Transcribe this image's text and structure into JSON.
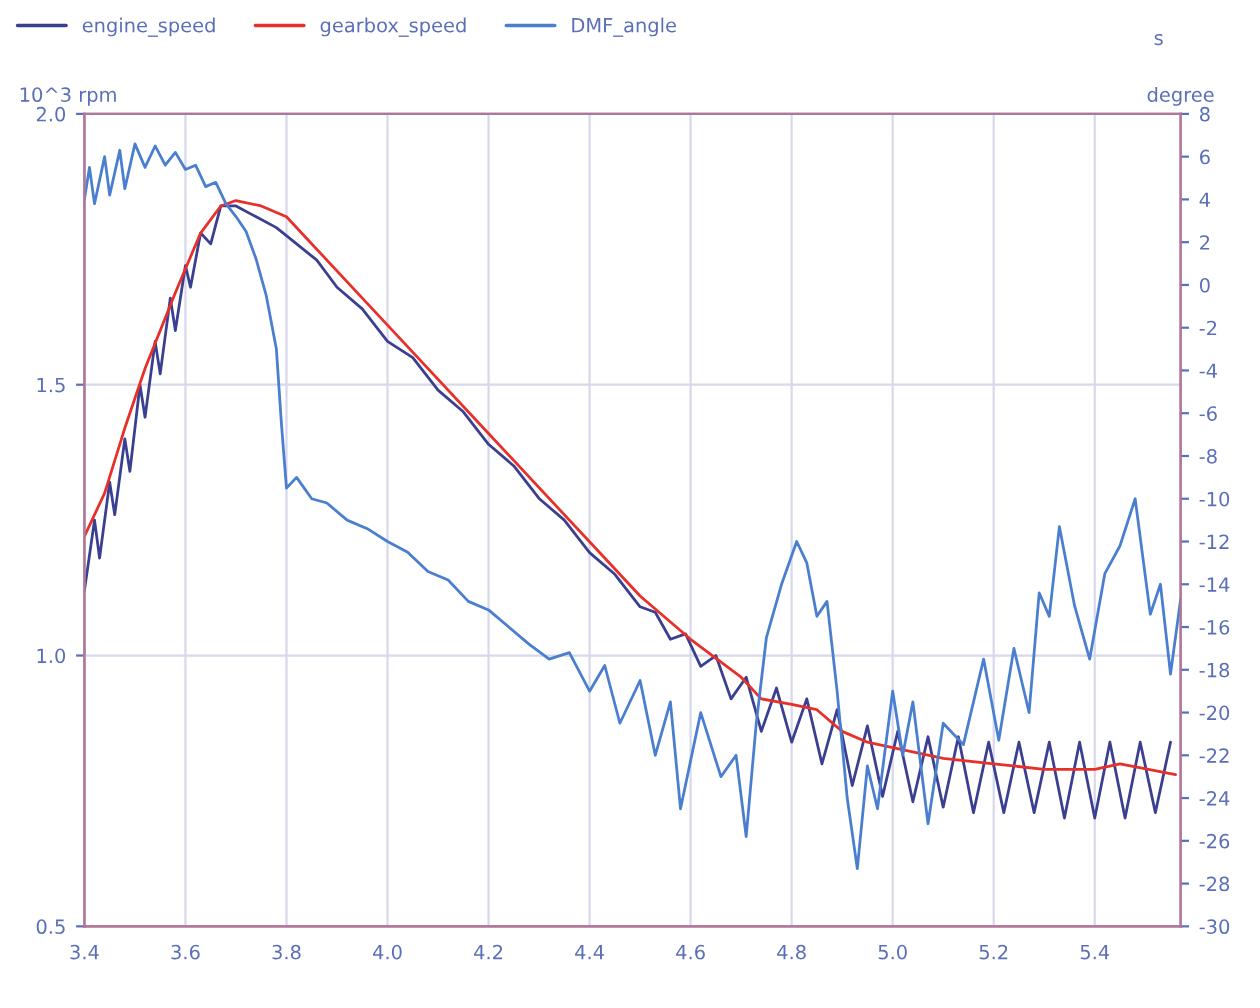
{
  "chart_data": {
    "type": "line",
    "xlabel": "s",
    "ylabel": "10^3 rpm",
    "y2label": "degree",
    "xlim": [
      3.4,
      5.57
    ],
    "xticks": [
      3.4,
      3.6,
      3.8,
      {
        "value": 4,
        "label": "4.0"
      },
      4.2,
      4.4,
      4.6,
      4.8,
      {
        "value": 5,
        "label": "5.0"
      },
      5.2,
      5.4
    ],
    "ylim": [
      0.5,
      2.0
    ],
    "yticks": [
      0.5,
      {
        "value": 1,
        "label": "1.0"
      },
      1.5,
      {
        "value": 2,
        "label": "2.0"
      }
    ],
    "y2lim": [
      -30,
      8
    ],
    "y2ticks": [
      8,
      6,
      4,
      2,
      0,
      -2,
      -4,
      -6,
      -8,
      -10,
      -12,
      -14,
      -16,
      -18,
      -20,
      -22,
      -24,
      -26,
      -28,
      -30
    ],
    "grid": true,
    "legend": "top left",
    "line_style": "solid",
    "marker": "none",
    "series": [
      {
        "name": "engine_speed",
        "color": "#3b3f8f",
        "x": [
          3.4,
          3.42,
          3.43,
          3.45,
          3.46,
          3.48,
          3.49,
          3.51,
          3.52,
          3.54,
          3.55,
          3.57,
          3.58,
          3.6,
          3.61,
          3.63,
          3.65,
          3.67,
          3.7,
          3.74,
          3.78,
          3.82,
          3.86,
          3.9,
          3.95,
          4.0,
          4.05,
          4.1,
          4.15,
          4.2,
          4.25,
          4.3,
          4.35,
          4.4,
          4.45,
          4.5,
          4.53,
          4.56,
          4.59,
          4.62,
          4.65,
          4.68,
          4.71,
          4.74,
          4.77,
          4.8,
          4.83,
          4.86,
          4.89,
          4.92,
          4.95,
          4.98,
          5.01,
          5.04,
          5.07,
          5.1,
          5.13,
          5.16,
          5.19,
          5.22,
          5.25,
          5.28,
          5.31,
          5.34,
          5.37,
          5.4,
          5.43,
          5.46,
          5.49,
          5.52,
          5.55
        ],
        "values": [
          1.12,
          1.25,
          1.18,
          1.32,
          1.26,
          1.4,
          1.34,
          1.5,
          1.44,
          1.58,
          1.52,
          1.66,
          1.6,
          1.72,
          1.68,
          1.78,
          1.76,
          1.83,
          1.83,
          1.81,
          1.79,
          1.76,
          1.73,
          1.68,
          1.64,
          1.58,
          1.55,
          1.49,
          1.45,
          1.39,
          1.35,
          1.29,
          1.25,
          1.19,
          1.15,
          1.09,
          1.08,
          1.03,
          1.04,
          0.98,
          1.0,
          0.92,
          0.96,
          0.86,
          0.94,
          0.84,
          0.92,
          0.8,
          0.9,
          0.76,
          0.87,
          0.74,
          0.86,
          0.73,
          0.85,
          0.72,
          0.85,
          0.71,
          0.84,
          0.71,
          0.84,
          0.71,
          0.84,
          0.7,
          0.84,
          0.7,
          0.84,
          0.7,
          0.84,
          0.71,
          0.84
        ]
      },
      {
        "name": "gearbox_speed",
        "color": "#e8302a",
        "x": [
          3.4,
          3.44,
          3.48,
          3.52,
          3.58,
          3.63,
          3.67,
          3.7,
          3.75,
          3.8,
          3.84,
          4.0,
          4.2,
          4.4,
          4.5,
          4.6,
          4.7,
          4.74,
          4.8,
          4.85,
          4.9,
          4.95,
          5.0,
          5.1,
          5.2,
          5.3,
          5.4,
          5.45,
          5.56
        ],
        "values": [
          1.22,
          1.3,
          1.42,
          1.53,
          1.67,
          1.78,
          1.83,
          1.84,
          1.83,
          1.81,
          1.77,
          1.61,
          1.41,
          1.21,
          1.11,
          1.03,
          0.96,
          0.92,
          0.91,
          0.9,
          0.86,
          0.84,
          0.83,
          0.81,
          0.8,
          0.79,
          0.79,
          0.8,
          0.78
        ]
      },
      {
        "name": "DMF_angle",
        "color": "#4a7fd0",
        "axis": "y2",
        "x": [
          3.4,
          3.41,
          3.42,
          3.44,
          3.45,
          3.47,
          3.48,
          3.5,
          3.52,
          3.54,
          3.56,
          3.58,
          3.6,
          3.62,
          3.64,
          3.66,
          3.68,
          3.7,
          3.72,
          3.74,
          3.76,
          3.78,
          3.79,
          3.8,
          3.82,
          3.85,
          3.88,
          3.92,
          3.96,
          4.0,
          4.04,
          4.08,
          4.12,
          4.16,
          4.2,
          4.24,
          4.28,
          4.32,
          4.36,
          4.4,
          4.43,
          4.46,
          4.5,
          4.53,
          4.56,
          4.58,
          4.62,
          4.66,
          4.69,
          4.71,
          4.73,
          4.75,
          4.78,
          4.81,
          4.83,
          4.85,
          4.87,
          4.89,
          4.91,
          4.93,
          4.95,
          4.97,
          5.0,
          5.02,
          5.04,
          5.07,
          5.1,
          5.14,
          5.18,
          5.21,
          5.24,
          5.27,
          5.29,
          5.31,
          5.33,
          5.36,
          5.39,
          5.42,
          5.45,
          5.48,
          5.51,
          5.53,
          5.55,
          5.57
        ],
        "values": [
          4.0,
          5.5,
          3.8,
          6.0,
          4.2,
          6.3,
          4.5,
          6.6,
          5.5,
          6.5,
          5.6,
          6.2,
          5.4,
          5.6,
          4.6,
          4.8,
          3.8,
          3.2,
          2.5,
          1.2,
          -0.5,
          -3.0,
          -6.5,
          -9.5,
          -9.0,
          -10.0,
          -10.2,
          -11.0,
          -11.4,
          -12.0,
          -12.5,
          -13.4,
          -13.8,
          -14.8,
          -15.2,
          -16.0,
          -16.8,
          -17.5,
          -17.2,
          -19.0,
          -17.8,
          -20.5,
          -18.5,
          -22.0,
          -19.5,
          -24.5,
          -20.0,
          -23.0,
          -22.0,
          -25.8,
          -20.5,
          -16.5,
          -14.0,
          -12.0,
          -13.0,
          -15.5,
          -14.8,
          -19.0,
          -24.0,
          -27.3,
          -22.5,
          -24.5,
          -19.0,
          -22.0,
          -19.5,
          -25.2,
          -20.5,
          -21.5,
          -17.5,
          -21.3,
          -17.0,
          -20.0,
          -14.4,
          -15.5,
          -11.3,
          -15.0,
          -17.5,
          -13.5,
          -12.2,
          -10.0,
          -15.4,
          -14.0,
          -18.2,
          -14.7
        ]
      }
    ]
  }
}
